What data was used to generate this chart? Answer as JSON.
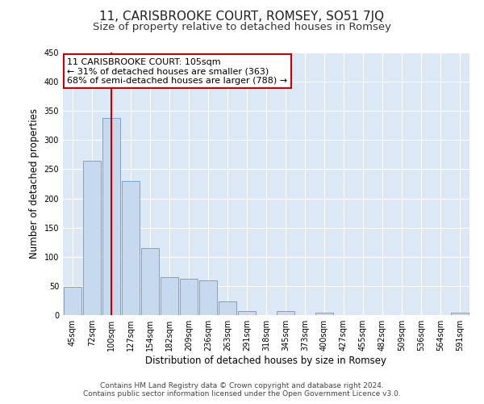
{
  "title": "11, CARISBROOKE COURT, ROMSEY, SO51 7JQ",
  "subtitle": "Size of property relative to detached houses in Romsey",
  "xlabel": "Distribution of detached houses by size in Romsey",
  "ylabel": "Number of detached properties",
  "bar_labels": [
    "45sqm",
    "72sqm",
    "100sqm",
    "127sqm",
    "154sqm",
    "182sqm",
    "209sqm",
    "236sqm",
    "263sqm",
    "291sqm",
    "318sqm",
    "345sqm",
    "373sqm",
    "400sqm",
    "427sqm",
    "455sqm",
    "482sqm",
    "509sqm",
    "536sqm",
    "564sqm",
    "591sqm"
  ],
  "bar_values": [
    49,
    265,
    338,
    230,
    115,
    65,
    62,
    60,
    24,
    7,
    0,
    7,
    0,
    4,
    0,
    0,
    0,
    0,
    0,
    0,
    4
  ],
  "bar_color": "#c6d9ee",
  "bar_edge_color": "#6aaad4",
  "vline_x": 2,
  "vline_color": "#cc0000",
  "annotation_text": "11 CARISBROOKE COURT: 105sqm\n← 31% of detached houses are smaller (363)\n68% of semi-detached houses are larger (788) →",
  "annotation_box_color": "#ffffff",
  "annotation_box_edge": "#cc0000",
  "ylim": [
    0,
    450
  ],
  "yticks": [
    0,
    50,
    100,
    150,
    200,
    250,
    300,
    350,
    400,
    450
  ],
  "footnote": "Contains HM Land Registry data © Crown copyright and database right 2024.\nContains public sector information licensed under the Open Government Licence v3.0.",
  "fig_bg_color": "#ffffff",
  "plot_bg_color": "#dce8f5",
  "grid_color": "#ffffff",
  "title_fontsize": 11,
  "subtitle_fontsize": 9.5,
  "tick_fontsize": 7,
  "ylabel_fontsize": 8.5,
  "xlabel_fontsize": 8.5,
  "annotation_fontsize": 8,
  "footnote_fontsize": 6.5
}
